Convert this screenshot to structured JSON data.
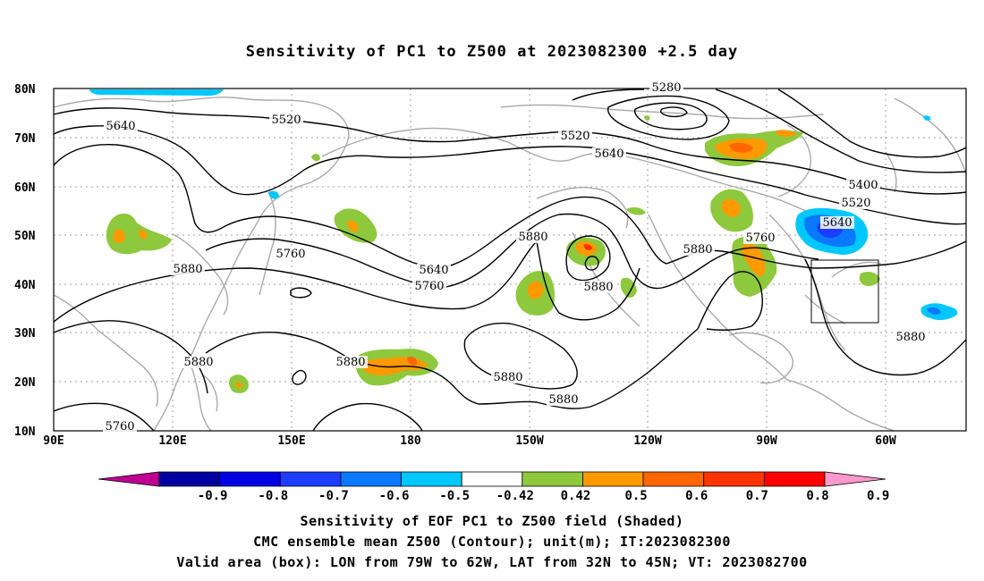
{
  "title": "Sensitivity of PC1 to Z500 at 2023082300 +2.5 day",
  "lat_labels": [
    "80N",
    "70N",
    "60N",
    "50N",
    "40N",
    "30N",
    "20N",
    "10N"
  ],
  "lon_labels": [
    "90E",
    "120E",
    "150E",
    "180",
    "150W",
    "120W",
    "90W",
    "60W"
  ],
  "contour_labels": [
    "5280",
    "5520",
    "5640",
    "5520",
    "5640",
    "5400",
    "5520",
    "5640",
    "5760",
    "5880",
    "5640",
    "5760",
    "5880",
    "5760",
    "5880",
    "5880",
    "5880",
    "5880",
    "5880",
    "5880",
    "5880",
    "5760"
  ],
  "colorbar": {
    "tick_labels": [
      "-0.9",
      "-0.8",
      "-0.7",
      "-0.6",
      "-0.5",
      "-0.42",
      "0.42",
      "0.5",
      "0.6",
      "0.7",
      "0.8",
      "0.9"
    ],
    "colors": [
      "#be0094",
      "#0000a0",
      "#0000e6",
      "#1e3cff",
      "#0a78ff",
      "#00c8ff",
      "#ffffff",
      "#8ec83c",
      "#ff9900",
      "#ff6600",
      "#ff3300",
      "#ff0000",
      "#ff99cc"
    ]
  },
  "captions": {
    "line1": "Sensitivity of EOF PC1 to Z500 field (Shaded)",
    "line2": "CMC ensemble mean Z500 (Contour); unit(m); IT:2023082300",
    "line3": "Valid area (box): LON from 79W to 62W, LAT from 32N to 45N; VT: 2023082700"
  }
}
